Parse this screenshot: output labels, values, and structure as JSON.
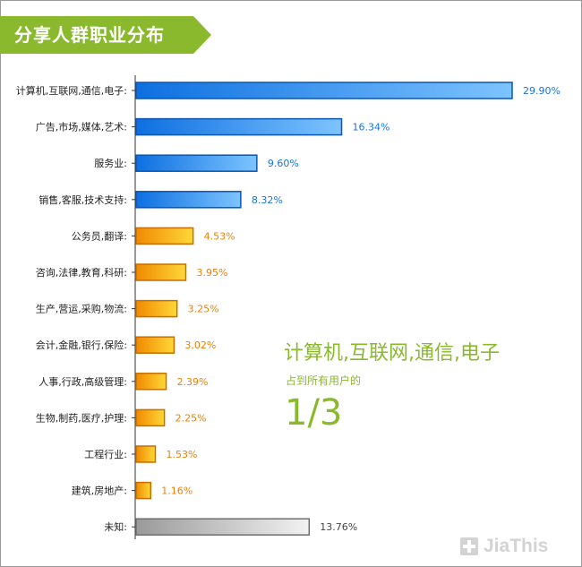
{
  "chart_data": {
    "type": "bar",
    "orientation": "horizontal",
    "title": "分享人群职业分布",
    "categories": [
      "计算机,互联网,通信,电子:",
      "广告,市场,媒体,艺术:",
      "服务业:",
      "销售,客服,技术支持:",
      "公务员,翻译:",
      "咨询,法律,教育,科研:",
      "生产,营运,采购,物流:",
      "会计,金融,银行,保险:",
      "人事,行政,高级管理:",
      "生物,制药,医疗,护理:",
      "工程行业:",
      "建筑,房地产:",
      "未知:"
    ],
    "values": [
      29.9,
      16.34,
      9.6,
      8.32,
      4.53,
      3.95,
      3.25,
      3.02,
      2.39,
      2.25,
      1.53,
      1.16,
      13.76
    ],
    "value_labels": [
      "29.90%",
      "16.34%",
      "9.60%",
      "8.32%",
      "4.53%",
      "3.95%",
      "3.25%",
      "3.02%",
      "2.39%",
      "2.25%",
      "1.53%",
      "1.16%",
      "13.76%"
    ],
    "colors": [
      "blue",
      "blue",
      "blue",
      "blue",
      "orange",
      "orange",
      "orange",
      "orange",
      "orange",
      "orange",
      "orange",
      "orange",
      "gray"
    ],
    "palette": {
      "blue": {
        "light": "#7dc4ff",
        "dark": "#0d6fe0",
        "border": "#0a56b0",
        "label": "#1a73d9"
      },
      "orange": {
        "light": "#ffd838",
        "dark": "#f08a00",
        "border": "#c86e00",
        "label": "#e8810a"
      },
      "gray": {
        "light": "#f2f2f2",
        "dark": "#9a9a9a",
        "border": "#6e6e6e",
        "label": "#444444"
      }
    },
    "xlim": [
      0,
      29.9
    ],
    "grid": false,
    "legend": "none"
  },
  "header": {
    "title": "分享人群职业分布",
    "banner_color": "#8ab92d"
  },
  "callout": {
    "line1": "计算机,互联网,通信,电子",
    "line2": "占到所有用户的",
    "line3": "1/3"
  },
  "brand": {
    "text": "JiaThis",
    "icon": "plus-icon"
  }
}
